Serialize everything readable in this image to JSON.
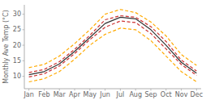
{
  "chart_data": {
    "type": "line",
    "ylabel": "Monthly Ave Temp (°C)",
    "categories": [
      "Jan",
      "Feb",
      "Mar",
      "Apr",
      "May",
      "Jun",
      "Jul",
      "Aug",
      "Sep",
      "Oct",
      "Nov",
      "Dec"
    ],
    "series": [
      {
        "color": "#ffaa00",
        "line_style": "dashed",
        "values": [
          8.2,
          9.2,
          11.5,
          15.5,
          20.0,
          23.5,
          25.5,
          25.0,
          21.5,
          16.5,
          11.5,
          8.2
        ]
      },
      {
        "color": "#ffaa00",
        "line_style": "dashed",
        "values": [
          12.8,
          13.8,
          16.5,
          20.5,
          25.0,
          30.0,
          31.5,
          30.5,
          27.5,
          23.0,
          17.0,
          13.5
        ]
      },
      {
        "color": "#cc3333",
        "line_style": "dashed",
        "values": [
          9.8,
          10.8,
          13.3,
          17.3,
          21.8,
          25.8,
          27.8,
          27.3,
          23.8,
          18.8,
          13.8,
          10.3
        ]
      },
      {
        "color": "#cc3333",
        "line_style": "dashed",
        "values": [
          11.2,
          12.2,
          14.7,
          18.7,
          23.2,
          28.2,
          29.5,
          29.0,
          26.0,
          21.2,
          15.2,
          11.7
        ]
      },
      {
        "color": "#333333",
        "line_style": "solid",
        "values": [
          10.5,
          11.5,
          14.0,
          18.0,
          22.5,
          27.0,
          29.0,
          28.5,
          25.0,
          20.0,
          14.5,
          11.0
        ]
      }
    ],
    "ylim": [
      6,
      33
    ],
    "yticks": [
      10,
      15,
      20,
      25,
      30
    ],
    "grid": false
  }
}
